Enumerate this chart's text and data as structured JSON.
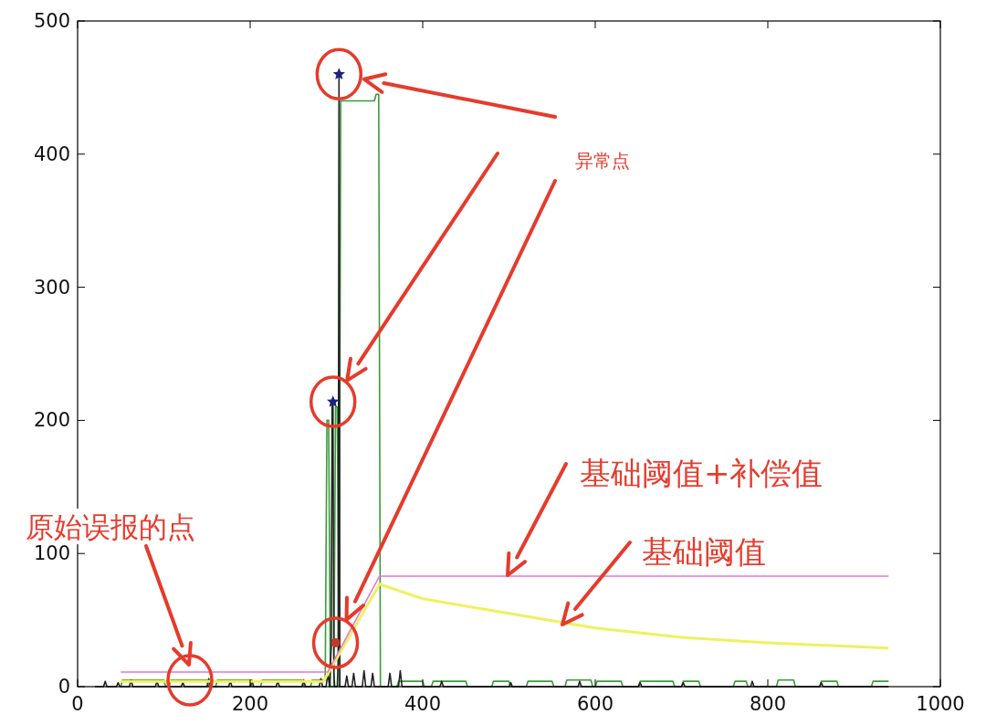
{
  "chart_data": {
    "type": "line",
    "xlim": [
      0,
      1000
    ],
    "ylim": [
      0,
      500
    ],
    "xticks": [
      0,
      200,
      400,
      600,
      800,
      1000
    ],
    "yticks": [
      0,
      100,
      200,
      300,
      400,
      500
    ],
    "grid": false,
    "annotations": [
      "异常点",
      "基础阈值+补偿值",
      "基础阈值",
      "原始误报的点"
    ],
    "series": [
      {
        "color": "#3a9a3a",
        "x": [
          50,
          52,
          100,
          102,
          106,
          108,
          150,
          152,
          160,
          162,
          200,
          202,
          212,
          214,
          260,
          262,
          270,
          272,
          287,
          289,
          291,
          293,
          297,
          299,
          301,
          303,
          305,
          344,
          346,
          349,
          351,
          353,
          370,
          372,
          400,
          402,
          410,
          412,
          450,
          452,
          480,
          482,
          500,
          502,
          520,
          522,
          550,
          552,
          565,
          567,
          595,
          597,
          600,
          602,
          630,
          632,
          650,
          652,
          690,
          692,
          700,
          702,
          720,
          722,
          760,
          762,
          775,
          777,
          810,
          812,
          830,
          832,
          860,
          862,
          880,
          882,
          920,
          922,
          940
        ],
        "values": [
          0,
          5,
          5,
          0,
          0,
          5,
          5,
          0,
          0,
          5,
          5,
          0,
          0,
          5,
          5,
          0,
          0,
          5,
          5,
          200,
          200,
          0,
          0,
          210,
          210,
          0,
          440,
          440,
          445,
          445,
          0,
          0,
          0,
          4,
          4,
          0,
          0,
          4,
          4,
          0,
          0,
          4,
          4,
          0,
          0,
          4,
          4,
          0,
          0,
          5,
          5,
          0,
          0,
          4,
          4,
          0,
          0,
          4,
          4,
          0,
          0,
          4,
          4,
          0,
          0,
          4,
          4,
          0,
          0,
          5,
          5,
          0,
          0,
          4,
          4,
          0,
          0,
          4,
          4
        ]
      },
      {
        "color": "#222222",
        "x": [
          20,
          30,
          32,
          34,
          45,
          47,
          49,
          60,
          62,
          64,
          90,
          92,
          94,
          120,
          122,
          124,
          150,
          152,
          154,
          175,
          177,
          179,
          200,
          202,
          204,
          230,
          232,
          234,
          260,
          262,
          264,
          280,
          282,
          284,
          288,
          290,
          292,
          294,
          295,
          296,
          297,
          298,
          301,
          302,
          303,
          304,
          306,
          310,
          312,
          314,
          318,
          320,
          322,
          330,
          332,
          334,
          340,
          342,
          344,
          360,
          362,
          364,
          372,
          374,
          376,
          420,
          422,
          424,
          500,
          502,
          504,
          580,
          582,
          584,
          650,
          652,
          654,
          700,
          702,
          704,
          780,
          782,
          784,
          860,
          862,
          864,
          940
        ],
        "values": [
          0,
          0,
          4,
          0,
          0,
          3,
          0,
          0,
          5,
          0,
          0,
          4,
          0,
          0,
          3,
          0,
          0,
          6,
          0,
          0,
          4,
          0,
          0,
          5,
          0,
          0,
          4,
          0,
          0,
          5,
          0,
          0,
          6,
          0,
          0,
          10,
          0,
          30,
          210,
          214,
          10,
          0,
          0,
          20,
          460,
          0,
          0,
          0,
          8,
          0,
          0,
          10,
          0,
          0,
          12,
          0,
          0,
          10,
          0,
          0,
          10,
          0,
          0,
          12,
          0,
          0,
          4,
          0,
          0,
          3,
          0,
          0,
          4,
          0,
          0,
          3,
          0,
          0,
          3,
          0,
          0,
          4,
          0,
          0,
          3,
          0,
          0
        ]
      },
      {
        "color": "#f0f060",
        "x": [
          50,
          285,
          350,
          400,
          500,
          600,
          700,
          800,
          940
        ],
        "values": [
          4,
          4,
          77,
          66,
          55,
          44,
          37,
          33,
          29
        ]
      },
      {
        "color": "#e07ad0",
        "x": [
          50,
          290,
          350,
          940
        ],
        "values": [
          11,
          11,
          83,
          83
        ]
      },
      {
        "type": "scatter",
        "color": "#1a237e",
        "marker": "star",
        "x": [
          303,
          296
        ],
        "values": [
          460,
          214
        ]
      },
      {
        "type": "scatter",
        "color": "#c0392b",
        "marker": "circle",
        "x": [
          299
        ],
        "values": [
          33
        ]
      }
    ]
  }
}
